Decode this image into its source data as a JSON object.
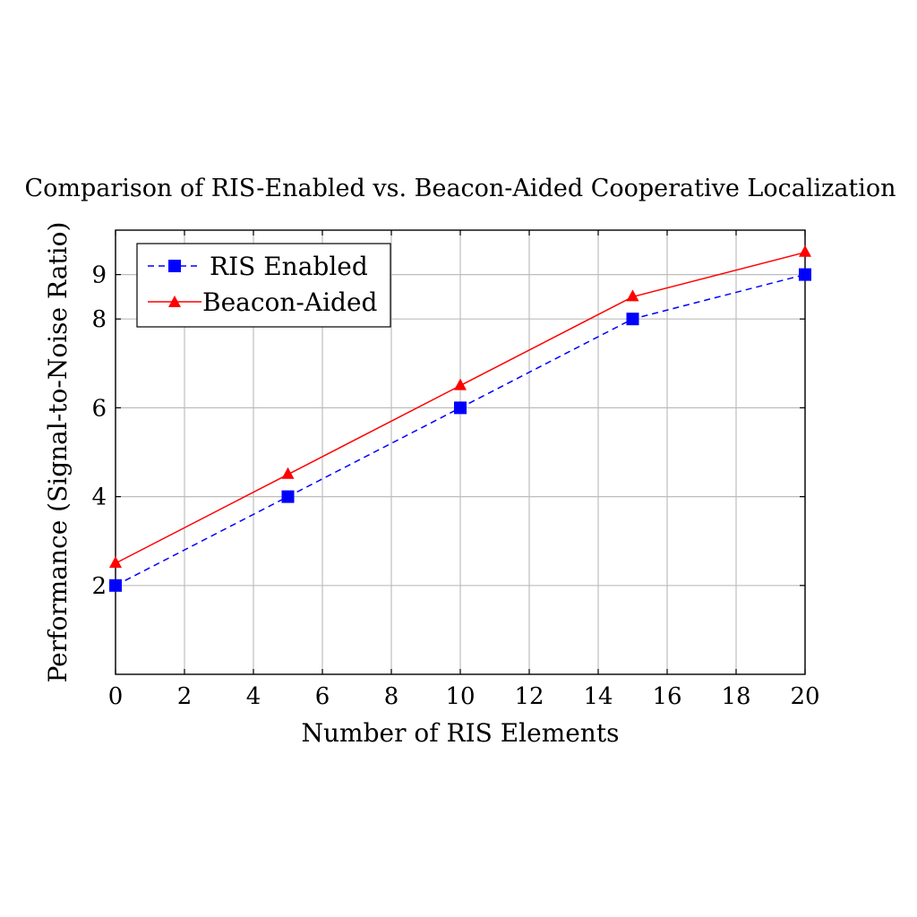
{
  "chart_data": {
    "type": "line",
    "title": "Comparison of RIS-Enabled vs. Beacon-Aided Cooperative Localization",
    "xlabel": "Number of RIS Elements",
    "ylabel": "Performance (Signal-to-Noise Ratio)",
    "xlim": [
      0,
      20
    ],
    "ylim": [
      0,
      10
    ],
    "xticks": [
      0,
      2,
      4,
      6,
      8,
      10,
      12,
      14,
      16,
      18,
      20
    ],
    "yticks": [
      2,
      4,
      6,
      8,
      9
    ],
    "grid": true,
    "legend_position": "top-left",
    "x": [
      0,
      5,
      10,
      15,
      20
    ],
    "series": [
      {
        "name": "RIS Enabled",
        "values": [
          2,
          4,
          6,
          8,
          9
        ],
        "color": "#0000ff",
        "line_style": "dashed",
        "marker": "square"
      },
      {
        "name": "Beacon-Aided",
        "values": [
          2.5,
          4.5,
          6.5,
          8.5,
          9.5
        ],
        "color": "#ff0000",
        "line_style": "solid",
        "marker": "triangle"
      }
    ]
  }
}
